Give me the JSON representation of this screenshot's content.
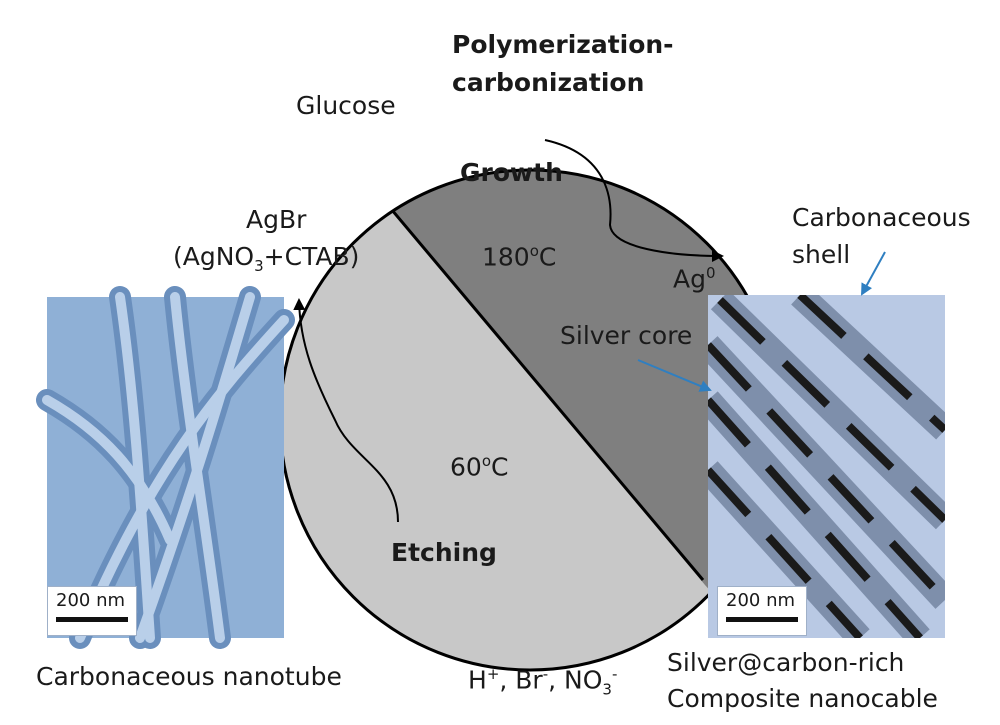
{
  "title_line1": "Polymerization-",
  "title_line2": "carbonization",
  "labels": {
    "glucose": "Glucose",
    "growth": "Growth",
    "agbr": "AgBr",
    "agno3_a": "(AgNO",
    "agno3_sub": "3",
    "agno3_b": "+CTAB)",
    "temp_high_num": "180",
    "temp_high_sup": "o",
    "temp_high_unit": "C",
    "ag0_base": "Ag",
    "ag0_sup": "0",
    "temp_low_num": "60",
    "temp_low_sup": "o",
    "temp_low_unit": "C",
    "etching": "Etching",
    "ions_h": "H",
    "ions_h_sup": "+",
    "ions_br": ", Br",
    "ions_br_sup": "-",
    "ions_no": ", NO",
    "ions_no_sub": "3",
    "ions_no_sup": "-",
    "carbonaceous_shell_1": "Carbonaceous",
    "carbonaceous_shell_2": "shell",
    "silver_core": "Silver core",
    "left_caption": "Carbonaceous nanotube",
    "right_caption_1": "Silver@carbon-rich",
    "right_caption_2": "Composite nanocable"
  },
  "scale_bars": {
    "left": "200 nm",
    "right": "200 nm"
  },
  "colors": {
    "dark_half": "#7f7f7f",
    "light_half": "#c8c8c8",
    "outline": "#000000",
    "pointer_arrow": "#2f7fc1",
    "left_panel_bg": "#8fb0d6",
    "right_panel_bg": "#b9c9e4"
  }
}
